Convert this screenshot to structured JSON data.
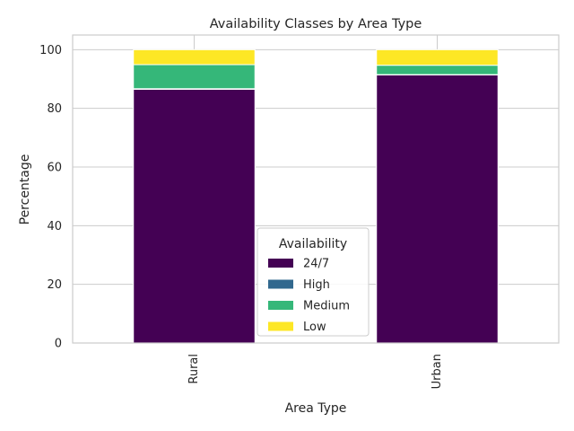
{
  "chart_data": {
    "type": "bar",
    "stacked": true,
    "title": "Availability Classes by Area Type",
    "xlabel": "Area Type",
    "ylabel": "Percentage",
    "categories": [
      "Rural",
      "Urban"
    ],
    "ylim": [
      0,
      105
    ],
    "yticks": [
      "0",
      "20",
      "40",
      "60",
      "80",
      "100"
    ],
    "grid": true,
    "legend": {
      "title": "Availability",
      "placement": "lower-center"
    },
    "series": [
      {
        "name": "24/7",
        "color": "#440154",
        "values": [
          86.5,
          91.4
        ]
      },
      {
        "name": "High",
        "color": "#31688e",
        "values": [
          0.2,
          0.1
        ]
      },
      {
        "name": "Medium",
        "color": "#35b779",
        "values": [
          8.2,
          3.2
        ]
      },
      {
        "name": "Low",
        "color": "#fde725",
        "values": [
          5.1,
          5.3
        ]
      }
    ]
  }
}
